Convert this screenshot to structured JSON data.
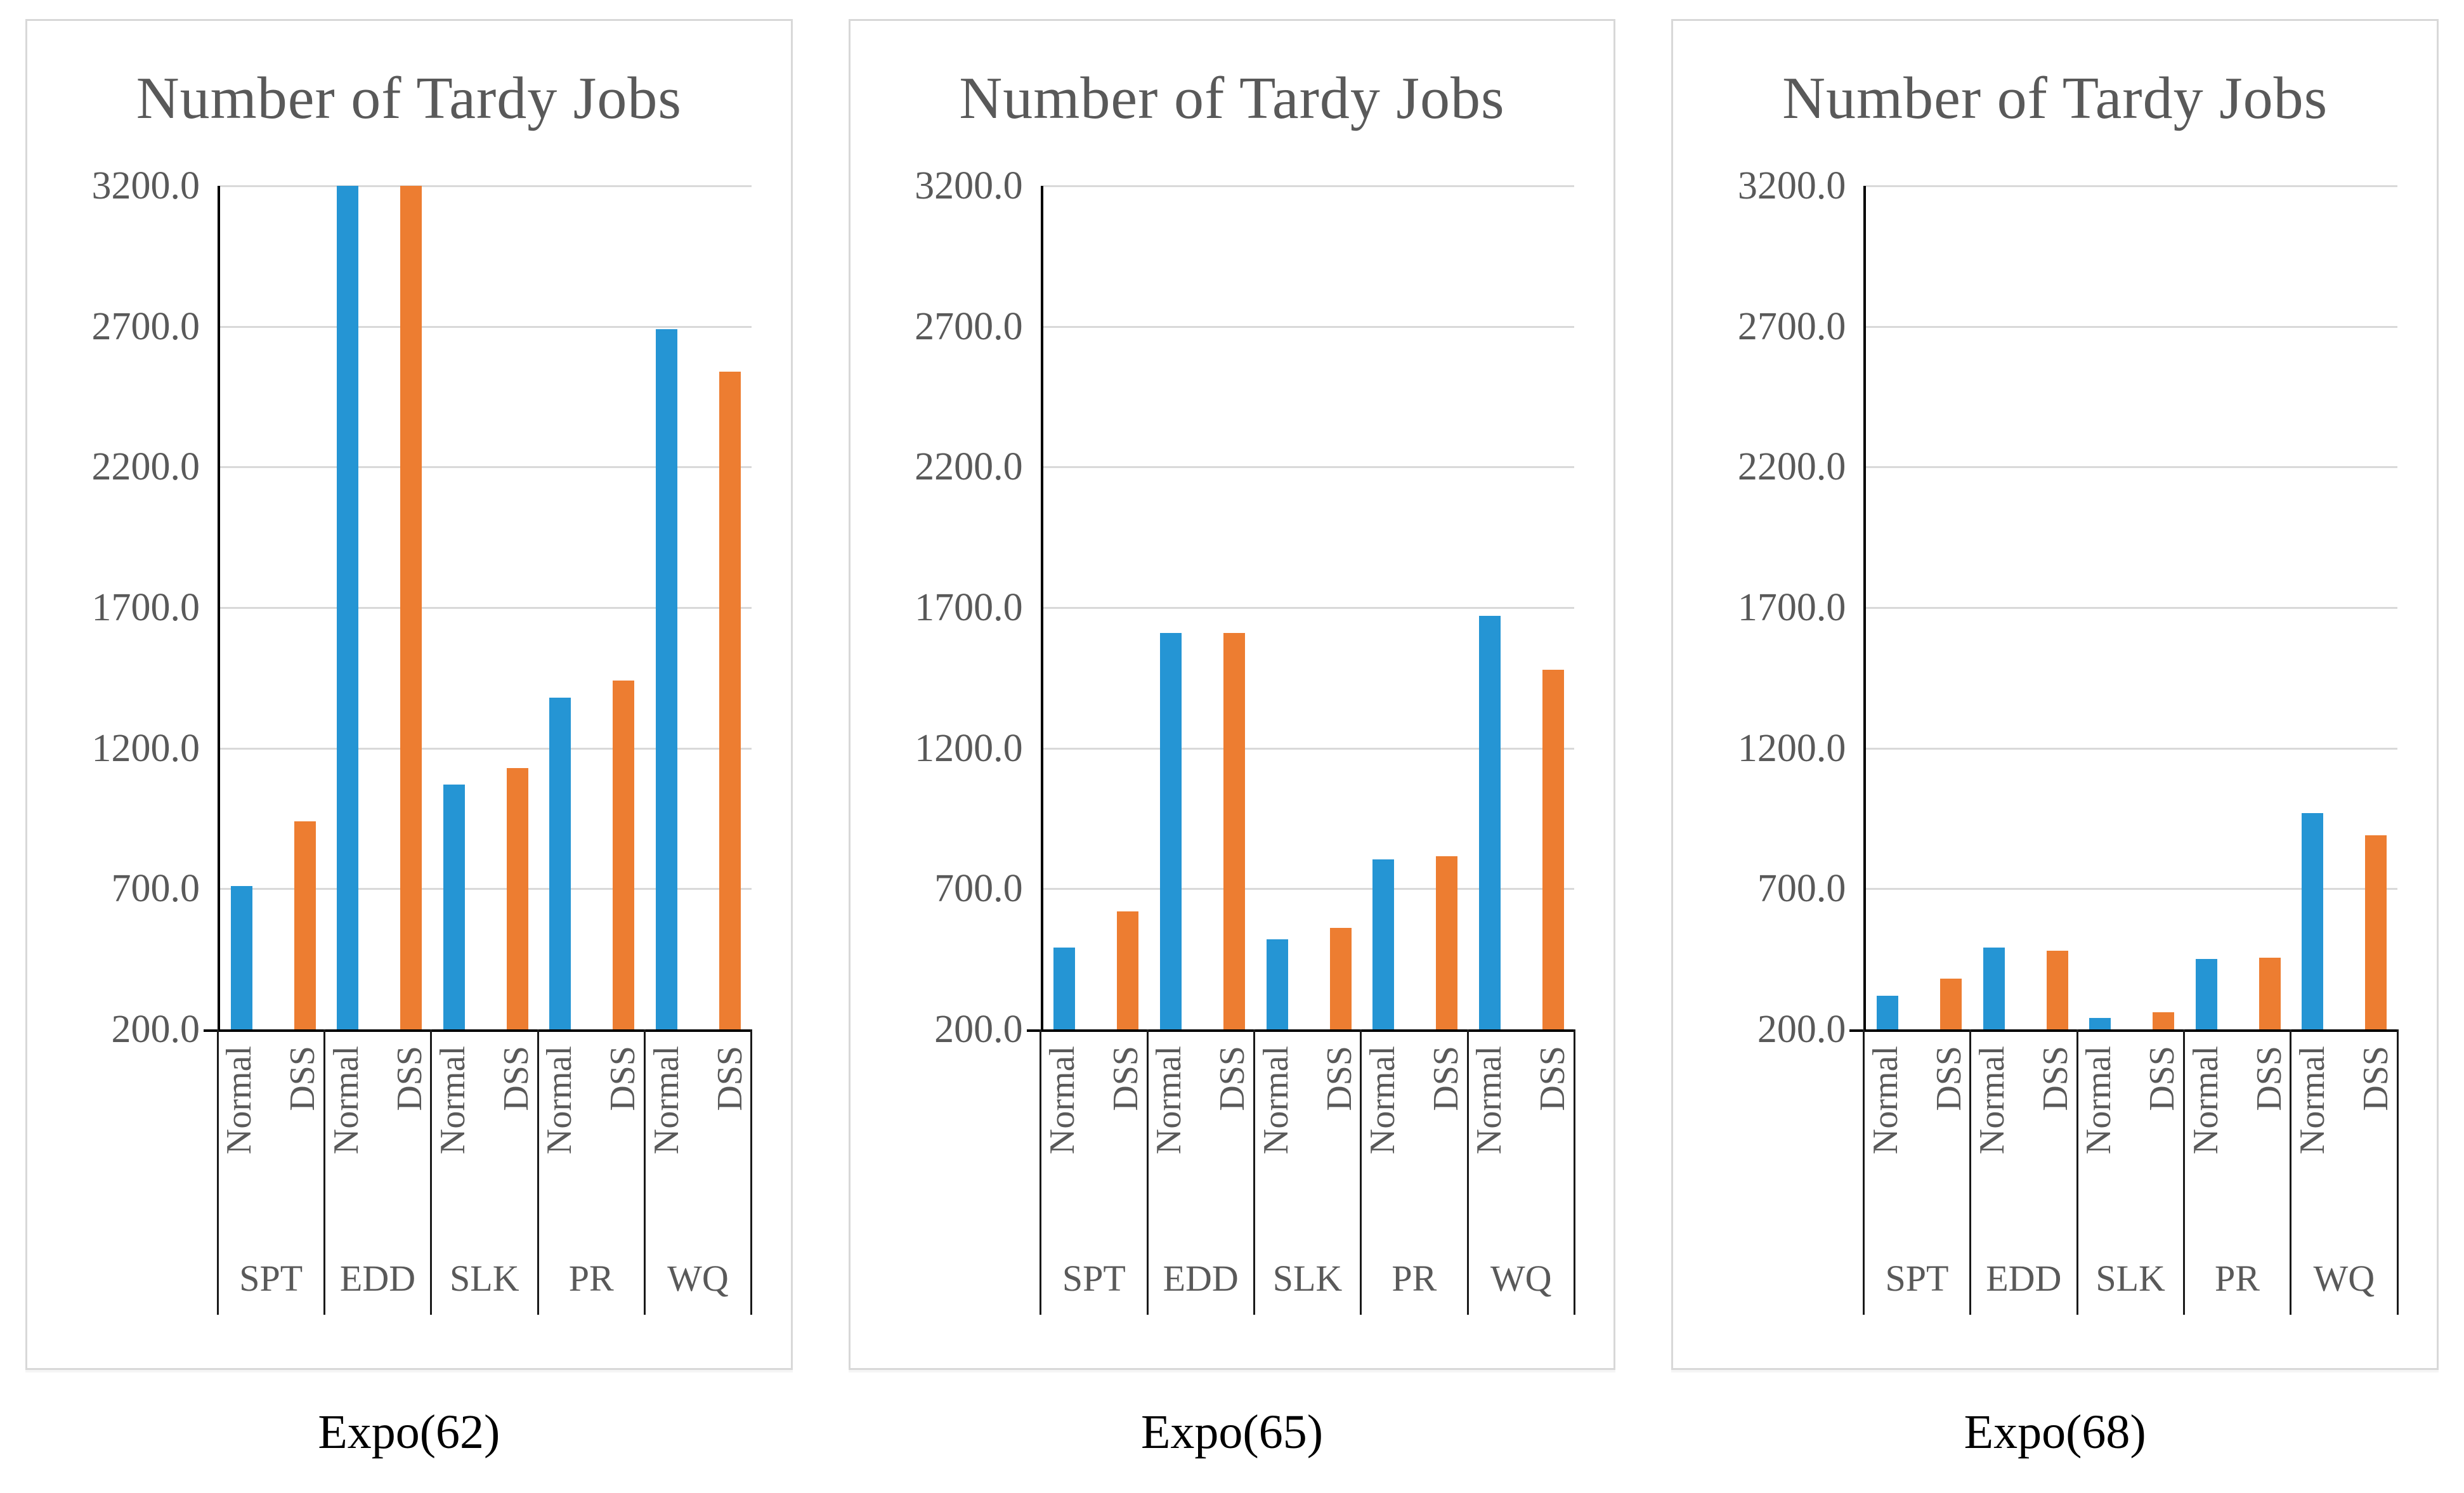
{
  "styles": {
    "normal_color": "#2595D4",
    "dss_color": "#ED7D31",
    "grid_color": "#D9D9D9",
    "axis_color": "#000000",
    "label_color": "#595959",
    "panel_border_color": "#D8D8D8",
    "caption_color": "#000000",
    "background": "#FFFFFF"
  },
  "series_legend": [
    "Normal",
    "DSS"
  ],
  "chart_data": [
    {
      "type": "bar",
      "title": "Number of Tardy Jobs",
      "caption": "Expo(62)",
      "categories": [
        "SPT",
        "EDD",
        "SLK",
        "PR",
        "WQ"
      ],
      "series": [
        {
          "name": "Normal",
          "values": [
            710,
            3200,
            1070,
            1380,
            2690
          ]
        },
        {
          "name": "DSS",
          "values": [
            940,
            3200,
            1130,
            1440,
            2540
          ]
        }
      ],
      "ylim": [
        200,
        3200
      ],
      "yticks": [
        3200,
        2700,
        2200,
        1700,
        1200,
        700,
        200
      ],
      "ytick_labels": [
        "3200.0",
        "2700.0",
        "2200.0",
        "1700.0",
        "1200.0",
        "700.0",
        "200.0"
      ],
      "xlabel": "",
      "ylabel": "",
      "grid": true,
      "legend_position": "none"
    },
    {
      "type": "bar",
      "title": "Number of Tardy Jobs",
      "caption": "Expo(65)",
      "categories": [
        "SPT",
        "EDD",
        "SLK",
        "PR",
        "WQ"
      ],
      "series": [
        {
          "name": "Normal",
          "values": [
            490,
            1610,
            520,
            805,
            1670
          ]
        },
        {
          "name": "DSS",
          "values": [
            620,
            1610,
            560,
            815,
            1480
          ]
        }
      ],
      "ylim": [
        200,
        3200
      ],
      "yticks": [
        3200,
        2700,
        2200,
        1700,
        1200,
        700,
        200
      ],
      "ytick_labels": [
        "3200.0",
        "2700.0",
        "2200.0",
        "1700.0",
        "1200.0",
        "700.0",
        "200.0"
      ],
      "xlabel": "",
      "ylabel": "",
      "grid": true,
      "legend_position": "none"
    },
    {
      "type": "bar",
      "title": "Number of Tardy Jobs",
      "caption": "Expo(68)",
      "categories": [
        "SPT",
        "EDD",
        "SLK",
        "PR",
        "WQ"
      ],
      "series": [
        {
          "name": "Normal",
          "values": [
            320,
            490,
            240,
            450,
            970
          ]
        },
        {
          "name": "DSS",
          "values": [
            380,
            480,
            260,
            455,
            890
          ]
        }
      ],
      "ylim": [
        200,
        3200
      ],
      "yticks": [
        3200,
        2700,
        2200,
        1700,
        1200,
        700,
        200
      ],
      "ytick_labels": [
        "3200.0",
        "2700.0",
        "2200.0",
        "1700.0",
        "1200.0",
        "700.0",
        "200.0"
      ],
      "xlabel": "",
      "ylabel": "",
      "grid": true,
      "legend_position": "none"
    }
  ]
}
